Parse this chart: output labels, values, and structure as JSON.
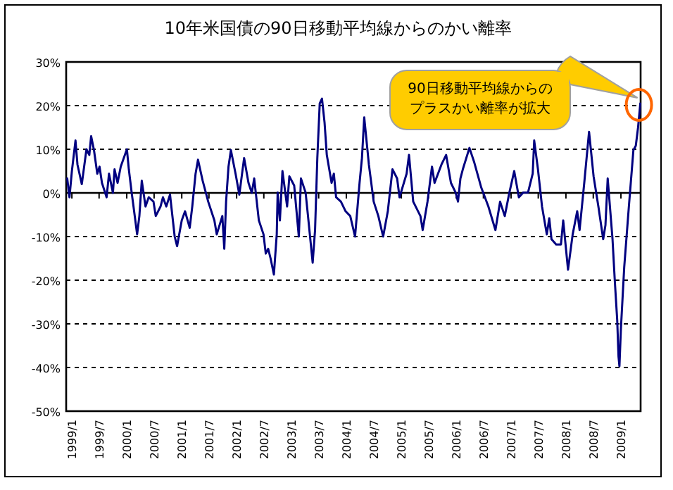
{
  "chart_data": {
    "type": "line",
    "title": "10年米国債の90日移動平均線からのかい離率",
    "x": [
      "1998-12-01",
      "1998-12-16",
      "1999-01-01",
      "1999-01-25",
      "1999-02-07",
      "1999-03-08",
      "1999-04-08",
      "1999-04-27",
      "1999-05-09",
      "1999-05-28",
      "1999-06-19",
      "1999-07-04",
      "1999-07-20",
      "1999-08-20",
      "1999-09-05",
      "1999-10-01",
      "1999-10-12",
      "1999-11-01",
      "1999-11-22",
      "2000-01-02",
      "2000-01-15",
      "2000-02-03",
      "2000-02-15",
      "2000-03-10",
      "2000-03-25",
      "2000-04-10",
      "2000-05-05",
      "2000-05-26",
      "2000-06-27",
      "2000-07-12",
      "2000-08-13",
      "2000-08-29",
      "2000-09-20",
      "2000-10-15",
      "2000-11-15",
      "2000-12-01",
      "2001-01-01",
      "2001-01-23",
      "2001-02-23",
      "2001-03-12",
      "2001-04-03",
      "2001-04-19",
      "2001-05-20",
      "2001-06-26",
      "2001-08-06",
      "2001-08-22",
      "2001-09-28",
      "2001-10-11",
      "2001-10-23",
      "2001-11-08",
      "2001-11-24",
      "2001-12-25",
      "2002-01-19",
      "2002-02-20",
      "2002-03-21",
      "2002-04-12",
      "2002-04-28",
      "2002-05-29",
      "2002-06-29",
      "2002-07-14",
      "2002-07-30",
      "2002-08-15",
      "2002-09-06",
      "2002-09-25",
      "2002-10-01",
      "2002-10-16",
      "2002-11-02",
      "2002-12-03",
      "2002-12-18",
      "2003-01-19",
      "2003-02-19",
      "2003-03-05",
      "2003-04-05",
      "2003-04-21",
      "2003-05-22",
      "2003-06-07",
      "2003-06-22",
      "2003-07-08",
      "2003-07-23",
      "2003-08-09",
      "2003-08-24",
      "2003-09-25",
      "2003-10-10",
      "2003-10-25",
      "2003-11-26",
      "2003-12-27",
      "2004-01-27",
      "2004-02-28",
      "2004-03-29",
      "2004-04-14",
      "2004-04-29",
      "2004-05-30",
      "2004-07-01",
      "2004-08-01",
      "2004-09-02",
      "2004-10-03",
      "2004-11-03",
      "2004-12-04",
      "2004-12-20",
      "2005-02-05",
      "2005-02-21",
      "2005-03-21",
      "2005-05-08",
      "2005-05-23",
      "2005-06-24",
      "2005-07-24",
      "2005-08-10",
      "2005-09-25",
      "2005-10-26",
      "2005-11-27",
      "2005-12-28",
      "2006-01-13",
      "2006-01-29",
      "2006-02-14",
      "2006-03-30",
      "2006-05-01",
      "2006-06-17",
      "2006-08-03",
      "2006-09-19",
      "2006-10-20",
      "2006-11-20",
      "2006-12-21",
      "2007-01-22",
      "2007-02-22",
      "2007-03-23",
      "2007-04-24",
      "2007-05-25",
      "2007-06-04",
      "2007-06-29",
      "2007-07-26",
      "2007-08-27",
      "2007-09-12",
      "2007-09-27",
      "2007-10-28",
      "2007-11-29",
      "2007-12-14",
      "2008-01-15",
      "2008-02-15",
      "2008-03-16",
      "2008-04-01",
      "2008-05-02",
      "2008-06-03",
      "2008-07-03",
      "2008-08-04",
      "2008-09-05",
      "2008-09-20",
      "2008-10-05",
      "2008-11-06",
      "2008-11-21",
      "2008-12-07",
      "2008-12-16",
      "2008-12-22",
      "2009-01-01",
      "2009-01-23",
      "2009-02-23",
      "2009-03-25",
      "2009-04-10",
      "2009-04-25",
      "2009-05-10"
    ],
    "series": [
      {
        "color": "#000080",
        "values": [
          3.3,
          -1,
          5,
          12,
          6.5,
          2,
          10,
          8.7,
          13,
          9.8,
          4.4,
          6,
          2.3,
          -1,
          4.4,
          0,
          5.4,
          2.3,
          6,
          10,
          5.4,
          0,
          -3.1,
          -9.5,
          -5.3,
          2.8,
          -3.1,
          -1,
          -2,
          -5.3,
          -3.1,
          -1,
          -3.1,
          -0.4,
          -10,
          -12.2,
          -6.3,
          -4.2,
          -8,
          -3.1,
          4.4,
          7.6,
          2.8,
          -2,
          -6.3,
          -9.5,
          -5.3,
          -12.8,
          -2,
          6,
          9.8,
          4.4,
          -0.4,
          8,
          2.3,
          0,
          3.3,
          -6.3,
          -9.5,
          -13.9,
          -12.8,
          -15,
          -18.7,
          -9.5,
          0.1,
          -6.3,
          5,
          -3.1,
          3.8,
          1.7,
          -10,
          3.3,
          0.1,
          -5.3,
          -16,
          -8.5,
          8,
          20.5,
          21.6,
          16.2,
          8.7,
          2.3,
          4.4,
          -1,
          -2,
          -4.2,
          -5.3,
          -10,
          2.3,
          8,
          17.3,
          6.5,
          -2,
          -5.3,
          -10,
          -4.2,
          5.4,
          3.3,
          -1,
          4.4,
          8.7,
          -2,
          -5.3,
          -8.5,
          -2,
          6,
          2.3,
          6.5,
          8.7,
          2.3,
          0.1,
          -2,
          3.3,
          5.4,
          10.3,
          7,
          1.2,
          -3.1,
          -8.5,
          -2,
          -5.3,
          0.1,
          5,
          -1,
          0.1,
          0.1,
          4.4,
          12,
          5.4,
          -3.1,
          -9.5,
          -5.8,
          -10.6,
          -11.8,
          -11.8,
          -6.3,
          -17.6,
          -9.5,
          -4.2,
          -8.5,
          2.3,
          14,
          3.8,
          -3.1,
          -10.6,
          -7.4,
          3.3,
          -10.6,
          -20,
          -29,
          -37.5,
          -39.7,
          -31,
          -17,
          -3.1,
          9.8,
          10.8,
          15,
          20.5
        ]
      }
    ],
    "xlim": [
      "1998-11-24",
      "2009-05-12"
    ],
    "xticks": [
      {
        "value": "1999-01",
        "label": "1999/1"
      },
      {
        "value": "1999-07",
        "label": "1999/7"
      },
      {
        "value": "2000-01",
        "label": "2000/1"
      },
      {
        "value": "2000-07",
        "label": "2000/7"
      },
      {
        "value": "2001-01",
        "label": "2001/1"
      },
      {
        "value": "2001-07",
        "label": "2001/7"
      },
      {
        "value": "2002-01",
        "label": "2002/1"
      },
      {
        "value": "2002-07",
        "label": "2002/7"
      },
      {
        "value": "2003-01",
        "label": "2003/1"
      },
      {
        "value": "2003-07",
        "label": "2003/7"
      },
      {
        "value": "2004-01",
        "label": "2004/1"
      },
      {
        "value": "2004-07",
        "label": "2004/7"
      },
      {
        "value": "2005-01",
        "label": "2005/1"
      },
      {
        "value": "2005-07",
        "label": "2005/7"
      },
      {
        "value": "2006-01",
        "label": "2006/1"
      },
      {
        "value": "2006-07",
        "label": "2006/7"
      },
      {
        "value": "2007-01",
        "label": "2007/1"
      },
      {
        "value": "2007-07",
        "label": "2007/7"
      },
      {
        "value": "2008-01",
        "label": "2008/1"
      },
      {
        "value": "2008-07",
        "label": "2008/7"
      },
      {
        "value": "2009-01",
        "label": "2009/1"
      }
    ],
    "ylim": [
      -50,
      30
    ],
    "yticks": [
      {
        "value": 30,
        "label": "30%"
      },
      {
        "value": 20,
        "label": "20%"
      },
      {
        "value": 10,
        "label": "10%"
      },
      {
        "value": 0,
        "label": "0%"
      },
      {
        "value": -10,
        "label": "-10%"
      },
      {
        "value": -20,
        "label": "-20%"
      },
      {
        "value": -30,
        "label": "-30%"
      },
      {
        "value": -40,
        "label": "-40%"
      },
      {
        "value": -50,
        "label": "-50%"
      }
    ],
    "grid": "y",
    "line_style": "solid",
    "marker": "none",
    "annotations": [
      "90日移動平均線からのプラスかい離率が拡大"
    ]
  }
}
